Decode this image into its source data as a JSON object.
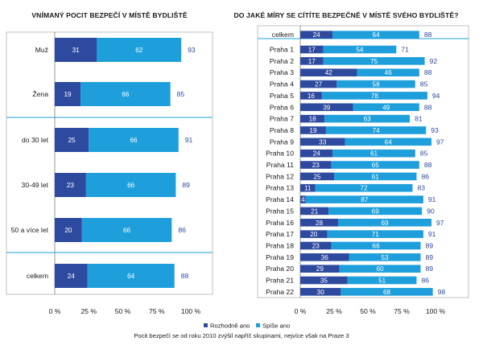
{
  "colors": {
    "rozhodne": "#2e4a9e",
    "spise": "#1e9fdc",
    "total_text": "#2e4a9e",
    "frame": "#9a9a9a",
    "divider": "#1e9fdc"
  },
  "chart_data": [
    {
      "type": "bar",
      "orientation": "horizontal",
      "stacked": true,
      "title": "VNÍMANÝ POCIT BEZPEČÍ V MÍSTĚ BYDLIŠTĚ",
      "categories": [
        "Muž",
        "Žena",
        "do 30 let",
        "30-49 let",
        "50 a více let",
        "celkem"
      ],
      "groups": [
        [
          "Muž",
          "Žena"
        ],
        [
          "do 30 let",
          "30-49 let",
          "50 a více let"
        ],
        [
          "celkem"
        ]
      ],
      "series": [
        {
          "name": "Rozhodně ano",
          "values": [
            31,
            19,
            25,
            23,
            20,
            24
          ]
        },
        {
          "name": "Spíše ano",
          "values": [
            62,
            66,
            66,
            66,
            66,
            64
          ]
        }
      ],
      "totals": [
        93,
        85,
        91,
        89,
        86,
        88
      ],
      "xlim": [
        0,
        100
      ],
      "xticks": [
        "0 %",
        "25 %",
        "50 %",
        "75 %",
        "100 %"
      ]
    },
    {
      "type": "bar",
      "orientation": "horizontal",
      "stacked": true,
      "title": "DO JAKÉ MÍRY SE CÍTÍTE BEZPEČNĚ V MÍSTĚ SVÉHO BYDLIŠTĚ?",
      "categories": [
        "celkem",
        "Praha 1",
        "Praha 2",
        "Praha 3",
        "Praha 4",
        "Praha 5",
        "Praha 6",
        "Praha 7",
        "Praha 8",
        "Praha 9",
        "Praha 10",
        "Praha 11",
        "Praha 12",
        "Praha 13",
        "Praha 14",
        "Praha 15",
        "Praha 16",
        "Praha 17",
        "Praha 18",
        "Praha 19",
        "Praha 20",
        "Praha 21",
        "Praha 22"
      ],
      "series": [
        {
          "name": "Rozhodně ano",
          "values": [
            24,
            17,
            17,
            42,
            27,
            16,
            39,
            18,
            19,
            33,
            24,
            23,
            25,
            11,
            4,
            21,
            28,
            20,
            23,
            36,
            29,
            35,
            30
          ]
        },
        {
          "name": "Spíše ano",
          "values": [
            64,
            54,
            75,
            46,
            58,
            78,
            49,
            63,
            74,
            64,
            61,
            65,
            61,
            72,
            87,
            69,
            69,
            71,
            66,
            53,
            60,
            51,
            68
          ]
        }
      ],
      "totals": [
        88,
        71,
        92,
        88,
        85,
        94,
        88,
        81,
        93,
        97,
        85,
        88,
        86,
        83,
        91,
        90,
        97,
        91,
        89,
        89,
        89,
        86,
        98
      ],
      "xlim": [
        0,
        100
      ],
      "xticks": [
        "0 %",
        "25 %",
        "50 %",
        "75 %",
        "100 %"
      ]
    }
  ],
  "legend": {
    "items": [
      {
        "label": "Rozhodně ano",
        "color": "#2e4a9e"
      },
      {
        "label": "Spíše ano",
        "color": "#1e9fdc"
      }
    ]
  },
  "footnote": "Pocit bezpečí se od roku 2010 zvýšil napříč skupinami, nejvíce však na Praze 3"
}
